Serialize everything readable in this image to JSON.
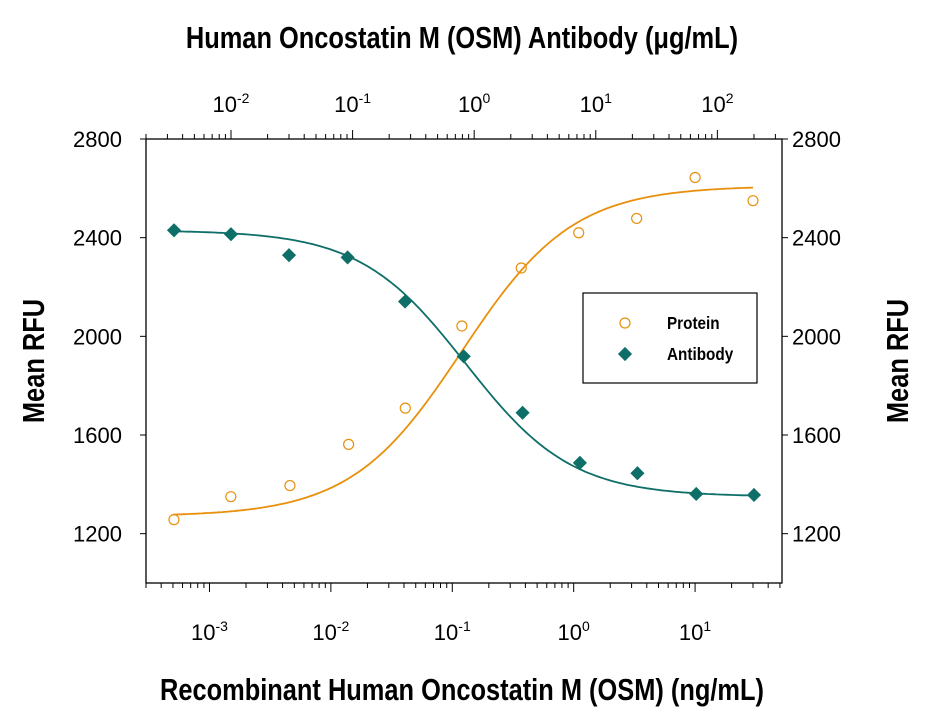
{
  "chart_data": {
    "type": "scatter",
    "top_title": "Human Oncostatin M (OSM) Antibody (μg/mL)",
    "xlabel": "Recombinant Human Oncostatin M (OSM) (ng/mL)",
    "ylabel": "Mean RFU",
    "ylabel_right": "Mean RFU",
    "xscale": "log",
    "xlim": [
      0.0003,
      52
    ],
    "x_top_lim": [
      0.002,
      340
    ],
    "ylim": [
      1000,
      2800
    ],
    "yticks": [
      1200,
      1600,
      2000,
      2400,
      2800
    ],
    "xticks_bottom": [
      {
        "base": "10",
        "exp": "-3",
        "value": 0.001
      },
      {
        "base": "10",
        "exp": "-2",
        "value": 0.01
      },
      {
        "base": "10",
        "exp": "-1",
        "value": 0.1
      },
      {
        "base": "10",
        "exp": "0",
        "value": 1
      },
      {
        "base": "10",
        "exp": "1",
        "value": 10
      }
    ],
    "xticks_top": [
      {
        "base": "10",
        "exp": "-2",
        "value": 0.01
      },
      {
        "base": "10",
        "exp": "-1",
        "value": 0.1
      },
      {
        "base": "10",
        "exp": "0",
        "value": 1
      },
      {
        "base": "10",
        "exp": "1",
        "value": 10
      },
      {
        "base": "10",
        "exp": "2",
        "value": 100
      }
    ],
    "grid": false,
    "legend_position": "center-right",
    "series": [
      {
        "name": "Protein",
        "axis": "bottom",
        "marker": "open-circle",
        "color": "#E8900C",
        "x": [
          0.00051,
          0.0015,
          0.0046,
          0.014,
          0.041,
          0.12,
          0.37,
          1.1,
          3.3,
          10,
          30
        ],
        "y": [
          1257,
          1350,
          1395,
          1562,
          1709,
          2042,
          2277,
          2420,
          2478,
          2644,
          2550
        ]
      },
      {
        "name": "Antibody",
        "axis": "top",
        "marker": "filled-diamond",
        "color": "#0E6E68",
        "x": [
          0.0034,
          0.01,
          0.03,
          0.091,
          0.27,
          0.82,
          2.5,
          7.4,
          22,
          67,
          200
        ],
        "y": [
          2430,
          2414,
          2329,
          2320,
          2141,
          1919,
          1690,
          1487,
          1445,
          1361,
          1357
        ]
      }
    ]
  }
}
